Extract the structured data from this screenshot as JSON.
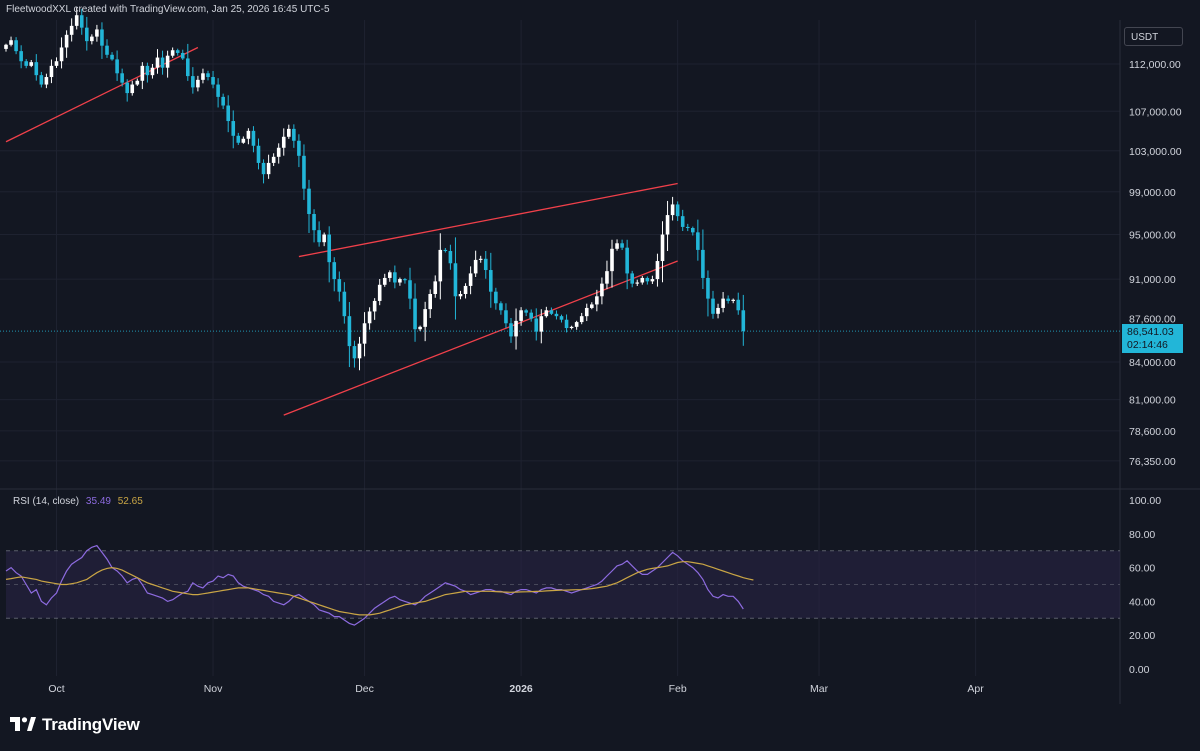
{
  "header": {
    "caption": "FleetwoodXXL created with TradingView.com, Jan 25, 2026 16:45 UTC-5"
  },
  "currency": "USDT",
  "brand": {
    "name": "TradingView"
  },
  "colors": {
    "background": "#131722",
    "candle_up": "#ffffff",
    "candle_down": "#22b6d8",
    "trendline": "#f0404a",
    "rsi_line": "#8d6be0",
    "rsi_ma": "#c9a545",
    "rsi_band": "#2a2447",
    "grid": "#1e2230"
  },
  "chart_data": [
    {
      "type": "candlestick",
      "ylim": [
        74500,
        115500
      ],
      "price_axis_labels": [
        "112,000.00",
        "107,000.00",
        "103,000.00",
        "99,000.00",
        "95,000.00",
        "91,000.00",
        "84,000.00",
        "81,000.00",
        "78,600.00",
        "76,350.00"
      ],
      "partially_hidden_label": "87,600.00",
      "time_axis_labels": [
        "Oct",
        "Nov",
        "Dec",
        "2026",
        "Feb",
        "Mar",
        "Apr"
      ],
      "last_price": "86,541.03",
      "countdown": "02:14:46",
      "grid": true,
      "trendlines": [
        {
          "name": "upper-channel",
          "points": [
            [
              "Sep 20",
              103900
            ],
            [
              "Oct 29",
              113800
            ]
          ]
        },
        {
          "name": "wedge-top",
          "points": [
            [
              "Nov 18",
              93000
            ],
            [
              "Feb 1",
              99800
            ]
          ]
        },
        {
          "name": "wedge-bottom",
          "points": [
            [
              "Nov 15",
              79800
            ],
            [
              "Feb 1",
              92600
            ]
          ]
        }
      ],
      "close": [
        114100,
        114600,
        113400,
        112300,
        111800,
        112200,
        110800,
        109800,
        110600,
        111800,
        112300,
        113800,
        115200,
        116200,
        117400,
        116000,
        114500,
        115000,
        115800,
        114000,
        113000,
        112500,
        111000,
        110000,
        108900,
        109800,
        110200,
        111800,
        110800,
        111600,
        112700,
        111600,
        112900,
        113500,
        113200,
        112600,
        110700,
        109500,
        110300,
        111000,
        110600,
        109800,
        108500,
        107600,
        106000,
        104500,
        103800,
        104200,
        105000,
        103500,
        101800,
        100700,
        101800,
        102400,
        103300,
        104400,
        105200,
        104000,
        102500,
        99300,
        96900,
        95400,
        94300,
        95000,
        92500,
        91000,
        89900,
        87800,
        85300,
        84300,
        85500,
        87200,
        88200,
        89100,
        90500,
        91100,
        91600,
        90700,
        91000,
        90900,
        89300,
        86700,
        86900,
        88400,
        89700,
        90800,
        93600,
        93500,
        92400,
        89500,
        89700,
        90400,
        91500,
        92700,
        92800,
        91800,
        89900,
        88900,
        88300,
        87200,
        86100,
        87400,
        88300,
        88100,
        87600,
        86500,
        87800,
        88300,
        88000,
        87800,
        87500,
        86800,
        86900,
        87300,
        87800,
        88500,
        88800,
        89500,
        90600,
        91700,
        93700,
        94200,
        93800,
        91500,
        90600,
        90700,
        91100,
        90800,
        91000,
        92600,
        95000,
        96800,
        97800,
        96700,
        95700,
        95600,
        95200,
        93600,
        91100,
        89300,
        88000,
        88500,
        89300,
        89100,
        89200,
        88300,
        86541
      ],
      "rsi_pane": {
        "title": "RSI (14, close)",
        "rsi_value": "35.49",
        "ma_value": "52.65",
        "ylim": [
          0,
          100
        ],
        "axis_labels": [
          "100.00",
          "80.00",
          "60.00",
          "40.00",
          "20.00",
          "0.00"
        ],
        "band": [
          30,
          70
        ],
        "middle_line": 50,
        "series": [
          {
            "name": "RSI",
            "values": [
              58,
              60,
              57,
              55,
              50,
              45,
              47,
              40,
              38,
              42,
              45,
              52,
              58,
              62,
              64,
              66,
              70,
              72,
              73,
              69,
              65,
              60,
              58,
              55,
              51,
              53,
              54,
              50,
              45,
              44,
              43,
              42,
              40,
              41,
              43,
              45,
              46,
              51,
              49,
              48,
              51,
              52,
              55,
              54,
              56,
              55,
              51,
              49,
              48,
              47,
              46,
              44,
              43,
              40,
              39,
              38,
              40,
              43,
              44,
              42,
              40,
              38,
              35,
              34,
              33,
              31,
              31,
              29,
              27,
              26,
              28,
              30,
              33,
              36,
              38,
              40,
              42,
              43,
              41,
              40,
              39,
              38,
              40,
              43,
              45,
              47,
              49,
              51,
              50,
              49,
              47,
              46,
              44,
              45,
              46,
              47,
              47,
              46,
              46,
              45,
              44,
              46,
              47,
              47,
              46,
              45,
              47,
              48,
              48,
              47,
              47,
              46,
              45,
              46,
              47,
              48,
              49,
              50,
              52,
              55,
              58,
              61,
              62,
              64,
              61,
              58,
              56,
              56,
              58,
              60,
              63,
              66,
              69,
              67,
              64,
              62,
              60,
              57,
              53,
              47,
              43,
              42,
              44,
              43,
              43,
              40,
              35.49
            ]
          },
          {
            "name": "RSI MA",
            "values": [
              53,
              53.5,
              54,
              54.5,
              54,
              53.5,
              53,
              52,
              51.5,
              51,
              50.5,
              50,
              50,
              50.5,
              51,
              52,
              53,
              55,
              57,
              58.5,
              59.5,
              60,
              59.5,
              58.5,
              57,
              55.5,
              54,
              52.5,
              51,
              50,
              49,
              48,
              47,
              46,
              45.5,
              45,
              44.5,
              44,
              44,
              44.5,
              45,
              45.5,
              46,
              46.5,
              47,
              47.5,
              48,
              48,
              48,
              47.5,
              47,
              46.5,
              46,
              45.5,
              45,
              44.5,
              44,
              43,
              42,
              41,
              40,
              39,
              38,
              37,
              36,
              35,
              34,
              33.5,
              33,
              32.5,
              32,
              32,
              32,
              32.5,
              33,
              34,
              35,
              36,
              37,
              38,
              38.5,
              39,
              39.5,
              40,
              41,
              42,
              43,
              44,
              44.5,
              45,
              45.5,
              46,
              46,
              46,
              46,
              46,
              46,
              45.8,
              45.6,
              45.5,
              45.4,
              45.5,
              45.6,
              45.7,
              45.8,
              45.9,
              46,
              46.2,
              46.4,
              46.5,
              46.6,
              46.7,
              46.8,
              46.9,
              47,
              47.3,
              47.6,
              48,
              48.5,
              49,
              50,
              51,
              52.5,
              54,
              55.5,
              57,
              58,
              59,
              59.5,
              60,
              60.5,
              61,
              62,
              63,
              63.5,
              63.5,
              63,
              62.5,
              62,
              61,
              60,
              59,
              58,
              57,
              56,
              55,
              54,
              53.3,
              52.65
            ]
          }
        ]
      }
    }
  ]
}
